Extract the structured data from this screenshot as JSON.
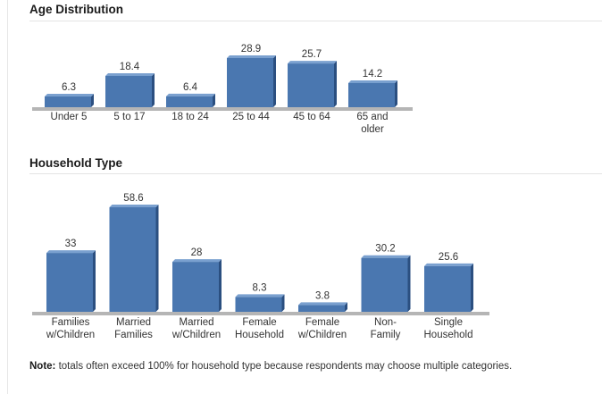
{
  "sections": {
    "age": {
      "title": "Age Distribution"
    },
    "household": {
      "title": "Household Type"
    }
  },
  "note": {
    "label": "Note:",
    "text": "totals often exceed 100% for household type because respondents may choose multiple categories."
  },
  "colors": {
    "bar_front": "#4a77b0",
    "bar_top": "#7aa0cf",
    "bar_side": "#2b4f80",
    "baseline": "#b5b5b5"
  },
  "chart_data": [
    {
      "type": "bar",
      "title": "Age Distribution",
      "categories": [
        "Under 5",
        "5 to 17",
        "18 to 24",
        "25 to 44",
        "45 to 64",
        "65 and older"
      ],
      "values": [
        6.3,
        18.4,
        6.4,
        28.9,
        25.7,
        14.2
      ],
      "xlabel": "",
      "ylabel": "",
      "ylim": [
        0,
        28.9
      ],
      "grid": false,
      "legend": "none"
    },
    {
      "type": "bar",
      "title": "Household Type",
      "categories": [
        "Families w/Children",
        "Married Families",
        "Married w/Children",
        "Female Household",
        "Female w/Children",
        "Non-Family",
        "Single Household"
      ],
      "values": [
        33,
        58.6,
        28,
        8.3,
        3.8,
        30.2,
        25.6
      ],
      "xlabel": "",
      "ylabel": "",
      "ylim": [
        0,
        58.6
      ],
      "grid": false,
      "legend": "none"
    }
  ]
}
